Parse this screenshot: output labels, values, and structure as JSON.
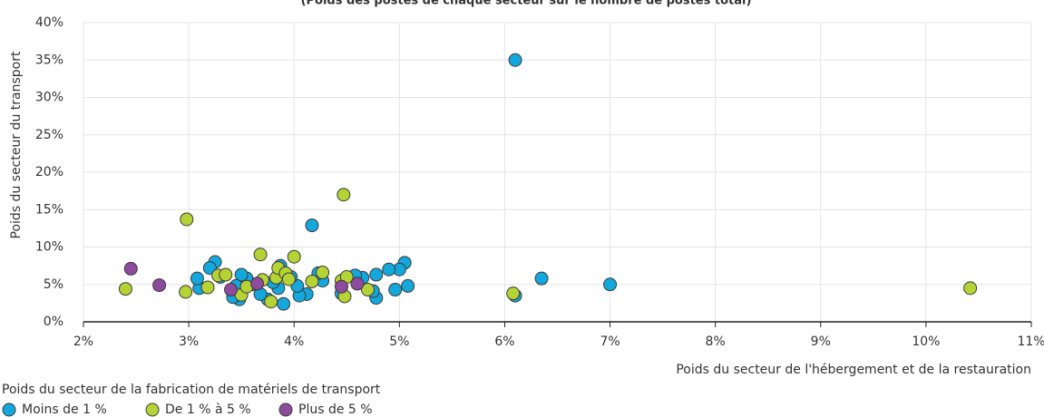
{
  "chart_data": {
    "type": "scatter",
    "subtitle": "(Poids des postes de chaque secteur sur le nombre de postes total)",
    "xlabel": "Poids du secteur de l'hébergement et de la restauration",
    "ylabel": "Poids du secteur du transport",
    "legend_title": "Poids du secteur de la fabrication de matériels de transport",
    "xlim": [
      2,
      11
    ],
    "xticks": [
      {
        "value": 2,
        "label": "2%"
      },
      {
        "value": 3,
        "label": "3%"
      },
      {
        "value": 4,
        "label": "4%"
      },
      {
        "value": 5,
        "label": "5%"
      },
      {
        "value": 6,
        "label": "6%"
      },
      {
        "value": 7,
        "label": "7%"
      },
      {
        "value": 8,
        "label": "8%"
      },
      {
        "value": 9,
        "label": "9%"
      },
      {
        "value": 10,
        "label": "10%"
      },
      {
        "value": 11,
        "label": "11%"
      }
    ],
    "ylim": [
      0,
      40
    ],
    "yticks": [
      {
        "value": 0,
        "label": "0%"
      },
      {
        "value": 5,
        "label": "5%"
      },
      {
        "value": 10,
        "label": "10%"
      },
      {
        "value": 15,
        "label": "15%"
      },
      {
        "value": 20,
        "label": "20%"
      },
      {
        "value": 25,
        "label": "25%"
      },
      {
        "value": 30,
        "label": "30%"
      },
      {
        "value": 35,
        "label": "35%"
      },
      {
        "value": 40,
        "label": "40%"
      }
    ],
    "grid": true,
    "series": [
      {
        "name": "Moins de 1 %",
        "color": "#13a7dc",
        "x": [
          6.1,
          4.17,
          6.35,
          7.0,
          6.1,
          5.05,
          5.0,
          4.9,
          4.78,
          5.08,
          4.96,
          4.78,
          4.75,
          4.65,
          4.58,
          4.45,
          4.27,
          4.23,
          4.12,
          4.05,
          4.03,
          3.97,
          3.9,
          3.87,
          3.85,
          3.8,
          3.75,
          3.68,
          3.6,
          3.55,
          3.5,
          3.48,
          3.45,
          3.42,
          3.3,
          3.25,
          3.2,
          3.1,
          3.08
        ],
        "values": [
          35,
          12.9,
          5.8,
          5.0,
          3.5,
          7.9,
          7.0,
          7.0,
          6.3,
          4.8,
          4.3,
          3.2,
          4.1,
          5.9,
          6.2,
          3.8,
          5.5,
          6.5,
          3.7,
          3.5,
          4.8,
          6.0,
          2.4,
          7.5,
          4.5,
          5.3,
          3.0,
          3.7,
          5.0,
          5.8,
          6.3,
          3.0,
          4.8,
          3.3,
          6.0,
          8.0,
          7.2,
          4.5,
          5.8
        ]
      },
      {
        "name": "De 1 % à 5 %",
        "color": "#b5d334",
        "x": [
          2.98,
          4.47,
          10.42,
          6.08,
          2.4,
          2.97,
          3.18,
          3.28,
          3.35,
          3.5,
          3.55,
          3.68,
          3.7,
          3.78,
          3.83,
          3.85,
          3.92,
          3.95,
          4.0,
          4.17,
          4.27,
          4.45,
          4.48,
          4.5,
          4.7
        ],
        "values": [
          13.7,
          17.0,
          4.5,
          3.8,
          4.4,
          4.0,
          4.6,
          6.2,
          6.3,
          3.6,
          4.7,
          9.0,
          5.6,
          2.7,
          5.9,
          7.2,
          6.5,
          5.7,
          8.7,
          5.4,
          6.6,
          5.5,
          3.4,
          6.0,
          4.3
        ]
      },
      {
        "name": "Plus de 5 %",
        "color": "#8e4a9c",
        "x": [
          2.45,
          2.72,
          3.4,
          3.65,
          4.45,
          4.6
        ],
        "values": [
          7.1,
          4.9,
          4.3,
          5.1,
          4.7,
          5.1
        ]
      }
    ]
  }
}
